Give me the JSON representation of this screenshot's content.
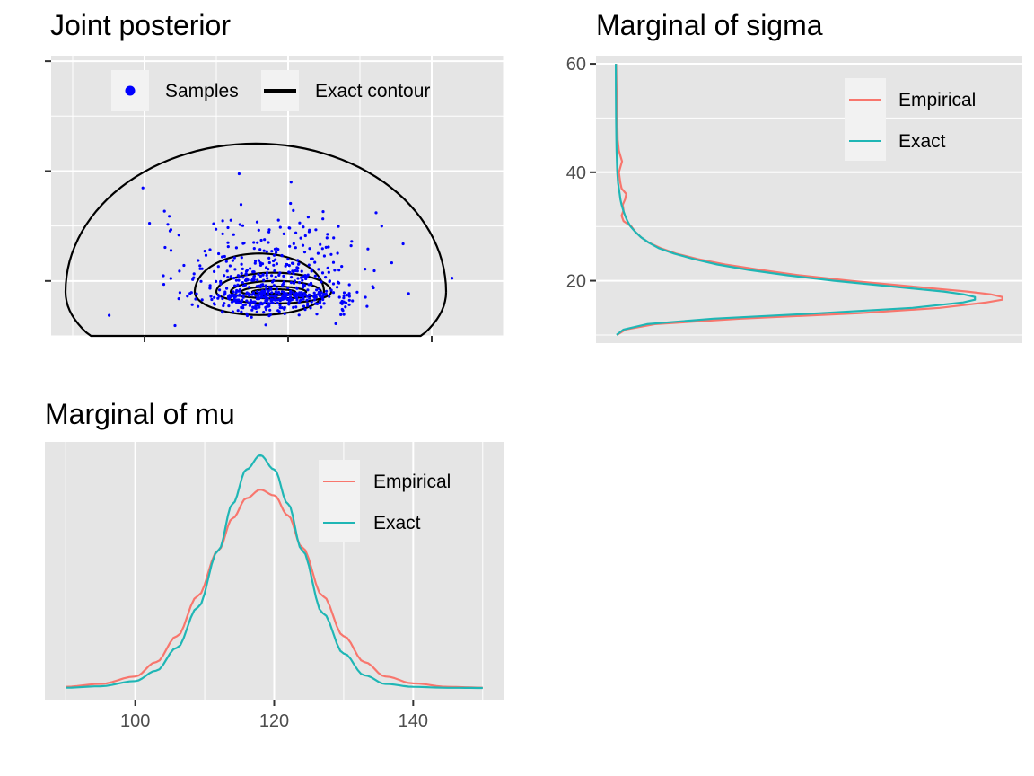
{
  "colors": {
    "panel_bg": "#e5e5e5",
    "grid": "#ffffff",
    "legend_key_bg": "#f2f2f2",
    "samples": "#0000ff",
    "contour": "#000000",
    "empirical": "#f8766d",
    "exact": "#1fb6b5",
    "tick_text": "#4d4d4d"
  },
  "chart_data": [
    {
      "id": "joint",
      "type": "scatter",
      "title": "Joint posterior",
      "xlim": [
        87,
        150
      ],
      "ylim": [
        10,
        61
      ],
      "x_ticks": [
        100,
        120,
        140
      ],
      "x_tick_labels": [
        "",
        "",
        ""
      ],
      "y_ticks": [
        20,
        40,
        60
      ],
      "y_tick_labels": [
        "",
        "",
        ""
      ],
      "legend": {
        "position": "top",
        "entries": [
          "Samples",
          "Exact contour"
        ]
      },
      "series": [
        {
          "name": "Samples",
          "kind": "points",
          "count": 600,
          "center": [
            118,
            18
          ],
          "spread": [
            6,
            5
          ]
        },
        {
          "name": "Exact contour",
          "kind": "contour",
          "center": [
            118,
            18
          ],
          "levels": [
            {
              "xr": [
                89,
                142
              ],
              "ytop": 45
            },
            {
              "xr": [
                107,
                125
              ],
              "ytop": 25
            },
            {
              "xr": [
                110,
                126
              ],
              "ytop": 21.5
            },
            {
              "xr": [
                112,
                124.6
              ],
              "ytop": 20
            },
            {
              "xr": [
                113.5,
                122.5
              ],
              "ytop": 19
            },
            {
              "xr": [
                115,
                121
              ],
              "ytop": 18.5
            }
          ]
        }
      ]
    },
    {
      "id": "sigma",
      "type": "line",
      "title": "Marginal of sigma",
      "orientation": "vertical",
      "ylim": [
        8.5,
        61.5
      ],
      "y_ticks": [
        20,
        40,
        60
      ],
      "y_tick_labels": [
        "20",
        "40",
        "60"
      ],
      "legend": {
        "position": "top-right",
        "entries": [
          "Empirical",
          "Exact"
        ]
      },
      "series": [
        {
          "name": "Empirical",
          "y": [
            10,
            11,
            12,
            13,
            14,
            15,
            16,
            16.5,
            17,
            17.5,
            18,
            19,
            20,
            21,
            22,
            23,
            24,
            25,
            26,
            27,
            28,
            29,
            30,
            31,
            32,
            33,
            34,
            35,
            36,
            37,
            38,
            40,
            42,
            43,
            44,
            46,
            50,
            55,
            60
          ],
          "density": [
            0.003,
            0.025,
            0.1,
            0.32,
            0.62,
            0.83,
            0.95,
            0.99,
            0.99,
            0.96,
            0.9,
            0.75,
            0.6,
            0.47,
            0.37,
            0.28,
            0.21,
            0.155,
            0.115,
            0.085,
            0.065,
            0.05,
            0.04,
            0.02,
            0.015,
            0.02,
            0.018,
            0.024,
            0.027,
            0.015,
            0.012,
            0.008,
            0.016,
            0.012,
            0.008,
            0.005,
            0.004,
            0.002,
            0.001
          ]
        },
        {
          "name": "Exact",
          "y": [
            10,
            11,
            12,
            13,
            14,
            15,
            16,
            16.5,
            17,
            17.5,
            18,
            19,
            20,
            21,
            22,
            23,
            24,
            25,
            26,
            27,
            28,
            29,
            30,
            31,
            32,
            33,
            34,
            35,
            36,
            37,
            38,
            40,
            42,
            44,
            46,
            50,
            55,
            60
          ],
          "density": [
            0.002,
            0.02,
            0.08,
            0.25,
            0.52,
            0.76,
            0.89,
            0.92,
            0.92,
            0.89,
            0.84,
            0.7,
            0.56,
            0.44,
            0.34,
            0.26,
            0.2,
            0.15,
            0.11,
            0.085,
            0.065,
            0.05,
            0.038,
            0.03,
            0.024,
            0.019,
            0.015,
            0.012,
            0.01,
            0.008,
            0.006,
            0.004,
            0.003,
            0.002,
            0.0015,
            0.001,
            0.0005,
            0.0002
          ]
        }
      ]
    },
    {
      "id": "mu",
      "type": "line",
      "title": "Marginal of mu",
      "xlim": [
        87,
        153
      ],
      "x_ticks": [
        100,
        120,
        140
      ],
      "x_tick_labels": [
        "100",
        "120",
        "140"
      ],
      "legend": {
        "position": "top-right",
        "entries": [
          "Empirical",
          "Exact"
        ]
      },
      "series": [
        {
          "name": "Empirical",
          "x": [
            90,
            95,
            100,
            103,
            106,
            109,
            112,
            114,
            116,
            118,
            120,
            122,
            124,
            127,
            130,
            133,
            136,
            140,
            145,
            150
          ],
          "density": [
            0.002,
            0.007,
            0.02,
            0.045,
            0.09,
            0.16,
            0.24,
            0.295,
            0.33,
            0.345,
            0.335,
            0.3,
            0.245,
            0.16,
            0.09,
            0.045,
            0.02,
            0.008,
            0.002,
            0.0005
          ]
        },
        {
          "name": "Exact",
          "x": [
            90,
            95,
            100,
            103,
            106,
            109,
            112,
            114,
            116,
            118,
            120,
            122,
            124,
            127,
            130,
            133,
            136,
            140,
            145,
            150
          ],
          "density": [
            0.0005,
            0.003,
            0.012,
            0.03,
            0.07,
            0.14,
            0.24,
            0.32,
            0.38,
            0.405,
            0.38,
            0.32,
            0.24,
            0.13,
            0.06,
            0.022,
            0.007,
            0.002,
            0.0003,
            5e-05
          ]
        }
      ]
    }
  ]
}
